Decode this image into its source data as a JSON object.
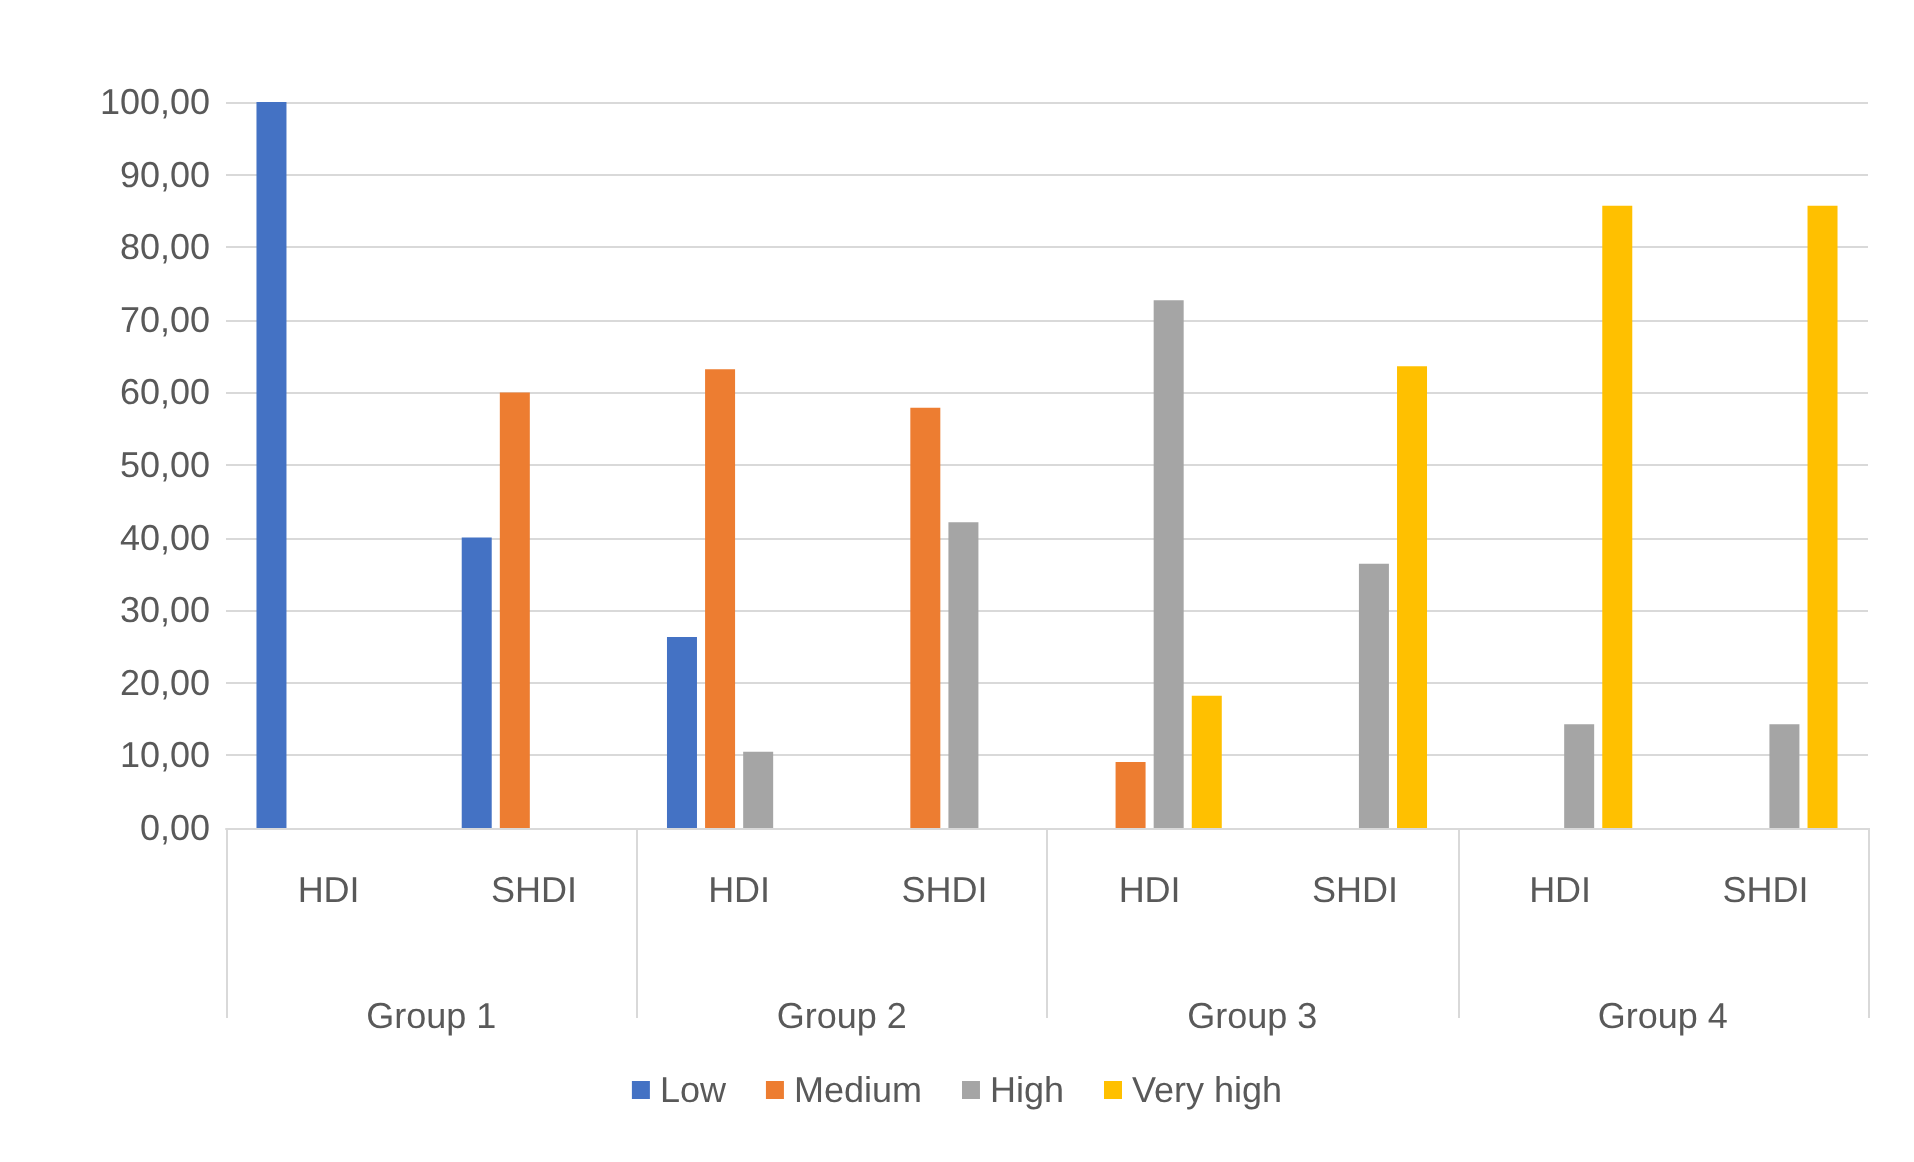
{
  "chart_data": {
    "type": "bar",
    "categories": [
      "HDI",
      "SHDI",
      "HDI",
      "SHDI",
      "HDI",
      "SHDI",
      "HDI",
      "SHDI"
    ],
    "annotations": [
      "Group 1",
      "Group 2",
      "Group 3",
      "Group 4"
    ],
    "series": [
      {
        "name": "Low",
        "color": "#4472c4",
        "values": [
          100,
          40,
          26.3,
          null,
          null,
          null,
          null,
          null
        ]
      },
      {
        "name": "Medium",
        "color": "#ed7d31",
        "values": [
          null,
          60,
          63.2,
          57.9,
          9.1,
          null,
          null,
          null
        ]
      },
      {
        "name": "High",
        "color": "#a5a5a5",
        "values": [
          null,
          null,
          10.5,
          42.1,
          72.7,
          36.4,
          14.3,
          14.3
        ]
      },
      {
        "name": "Very high",
        "color": "#ffc000",
        "values": [
          null,
          null,
          null,
          null,
          18.2,
          63.6,
          85.7,
          85.7
        ]
      }
    ],
    "ylim": [
      0,
      100
    ],
    "yticks": [
      {
        "value": 0,
        "label": "0,00"
      },
      {
        "value": 10,
        "label": "10,00"
      },
      {
        "value": 20,
        "label": "20,00"
      },
      {
        "value": 30,
        "label": "30,00"
      },
      {
        "value": 40,
        "label": "40,00"
      },
      {
        "value": 50,
        "label": "50,00"
      },
      {
        "value": 60,
        "label": "60,00"
      },
      {
        "value": 70,
        "label": "70,00"
      },
      {
        "value": 80,
        "label": "80,00"
      },
      {
        "value": 90,
        "label": "90,00"
      },
      {
        "value": 100,
        "label": "100,00"
      }
    ],
    "grid": "y",
    "legend": "bottom"
  }
}
